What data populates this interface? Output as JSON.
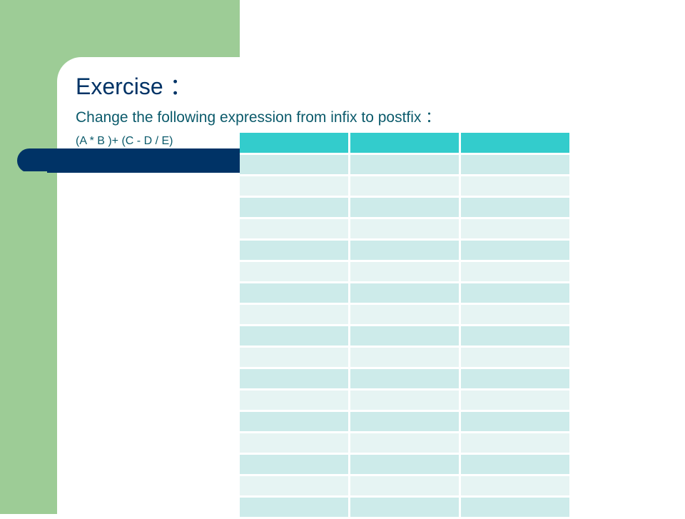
{
  "slide": {
    "title": "Exercise ：",
    "subtitle": "Change the following expression from infix to postfix ：",
    "expression": "(A * B )+ (C - D / E)"
  },
  "table": {
    "columns": 3,
    "header_row": [
      "",
      "",
      ""
    ],
    "rows": [
      [
        "",
        "",
        ""
      ],
      [
        "",
        "",
        ""
      ],
      [
        "",
        "",
        ""
      ],
      [
        "",
        "",
        ""
      ],
      [
        "",
        "",
        ""
      ],
      [
        "",
        "",
        ""
      ],
      [
        "",
        "",
        ""
      ],
      [
        "",
        "",
        ""
      ],
      [
        "",
        "",
        ""
      ],
      [
        "",
        "",
        ""
      ],
      [
        "",
        "",
        ""
      ],
      [
        "",
        "",
        ""
      ],
      [
        "",
        "",
        ""
      ],
      [
        "",
        "",
        ""
      ],
      [
        "",
        "",
        ""
      ],
      [
        "",
        "",
        ""
      ],
      [
        "",
        "",
        ""
      ]
    ]
  },
  "colors": {
    "side_panel": "#9dcc96",
    "accent_bar": "#003366",
    "title_text": "#003366",
    "body_text": "#0b5a6b",
    "table_header": "#33cccc",
    "table_row_odd": "#cdebea",
    "table_row_even": "#e6f4f3"
  }
}
